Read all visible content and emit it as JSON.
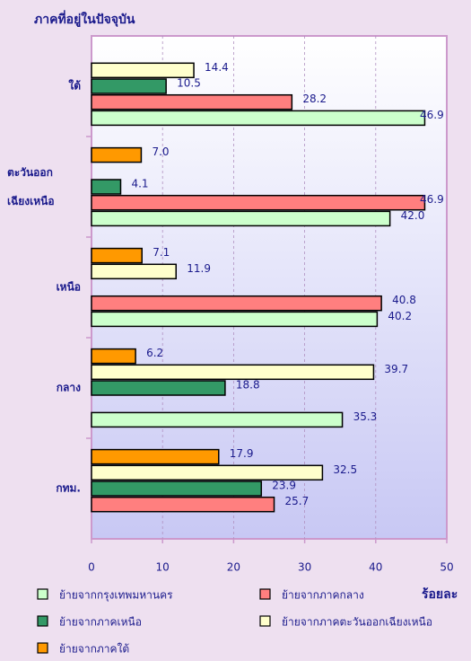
{
  "chart_data": {
    "type": "hbar",
    "title": "ภาคที่อยู่ในปัจจุบัน",
    "xlabel": "ร้อยละ",
    "categories": [
      "ใต้",
      "ตะวันออกเฉียงเหนือ",
      "เหนือ",
      "กลาง",
      "กทม."
    ],
    "xlim": [
      0,
      50
    ],
    "xticks": [
      0,
      10,
      20,
      30,
      40,
      50
    ],
    "grid": true,
    "series": [
      {
        "name": "ย้ายจากกรุงเทพมหานคร",
        "color": "#ccffcc",
        "values": [
          46.9,
          42.0,
          40.2,
          35.3,
          null
        ],
        "value_labels": [
          "46.9",
          "42.0",
          "40.2",
          "35.3",
          null
        ]
      },
      {
        "name": "ย้ายจากภาคกลาง",
        "color": "#ff7f7f",
        "values": [
          28.2,
          46.9,
          40.8,
          null,
          25.7
        ],
        "value_labels": [
          "28.2",
          "46.9",
          "40.8",
          null,
          "25.7"
        ]
      },
      {
        "name": "ย้ายจากภาคเหนือ",
        "color": "#339966",
        "values": [
          10.5,
          4.1,
          null,
          18.8,
          23.9
        ],
        "value_labels": [
          "10.5",
          "4.1",
          null,
          "18.8",
          "23.9"
        ]
      },
      {
        "name": "ย้ายจากภาคตะวันออกเฉียงเหนือ",
        "color": "#ffffcc",
        "values": [
          14.4,
          null,
          11.9,
          39.7,
          32.5
        ],
        "value_labels": [
          "14.4",
          null,
          "11.9",
          "39.7",
          "32.5"
        ]
      },
      {
        "name": "ย้ายจากภาคใต้",
        "color": "#ff9900",
        "values": [
          null,
          7.0,
          7.1,
          6.2,
          17.9
        ],
        "value_labels": [
          null,
          "7.0",
          "7.1",
          "6.2",
          "17.9"
        ]
      }
    ]
  }
}
